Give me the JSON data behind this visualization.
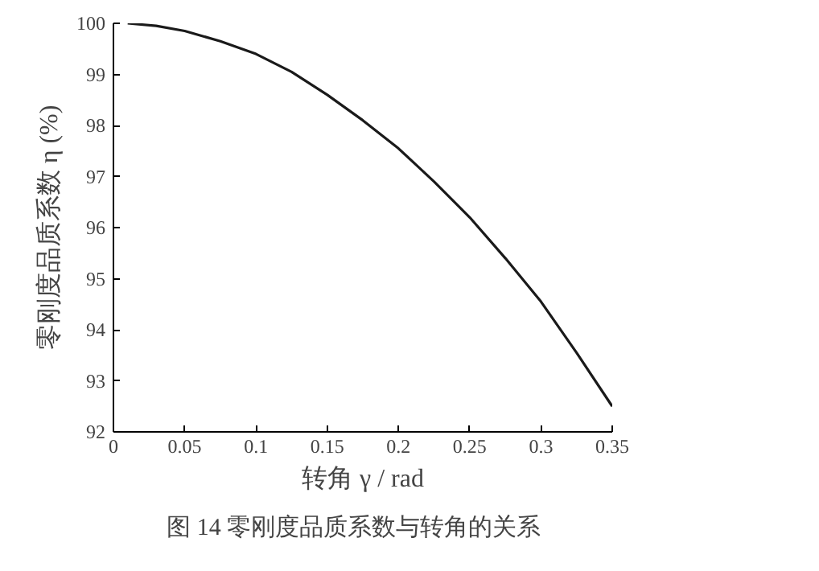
{
  "chart_data": {
    "type": "line",
    "xlabel": "转角 γ / rad",
    "ylabel": "零刚度品质系数 η (%)",
    "annotations": [
      "图 14    零刚度品质系数与转角的关系"
    ],
    "x": [
      0.01,
      0.03,
      0.05,
      0.075,
      0.1,
      0.125,
      0.15,
      0.175,
      0.2,
      0.225,
      0.25,
      0.275,
      0.3,
      0.325,
      0.35
    ],
    "series": [
      {
        "color": "#1a1a1a",
        "values": [
          100,
          99.95,
          99.85,
          99.65,
          99.4,
          99.05,
          98.6,
          98.1,
          97.55,
          96.9,
          96.2,
          95.4,
          94.55,
          93.55,
          92.5
        ]
      }
    ],
    "xlim": [
      0,
      0.35
    ],
    "ylim": [
      92,
      100
    ],
    "xticks": [
      0,
      0.05,
      0.1,
      0.15,
      0.2,
      0.25,
      0.3,
      0.35
    ],
    "yticks": [
      92,
      93,
      94,
      95,
      96,
      97,
      98,
      99,
      100
    ],
    "grid": false,
    "marker": "none",
    "line_style": "solid"
  }
}
